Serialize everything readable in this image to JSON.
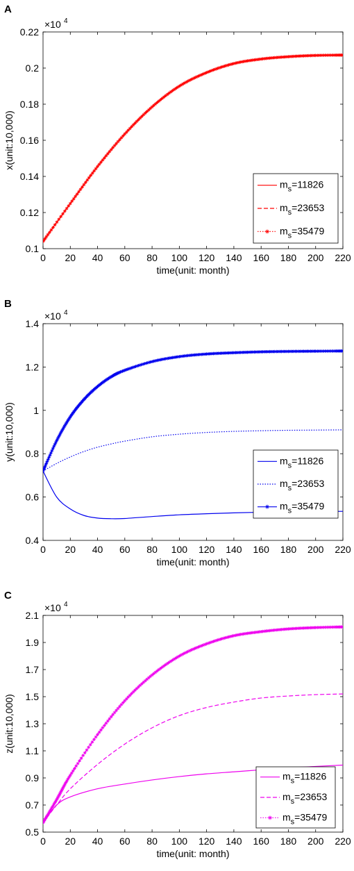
{
  "chart_data": [
    {
      "panel_label": "A",
      "type": "line",
      "xlabel": "time(unit: month)",
      "ylabel": "x(unit:10,000)",
      "multiplier": "×10",
      "multiplier_exp": "4",
      "xlim": [
        0,
        220
      ],
      "ylim": [
        0.1,
        0.22
      ],
      "xticks": [
        0,
        20,
        40,
        60,
        80,
        100,
        120,
        140,
        160,
        180,
        200,
        220
      ],
      "yticks": [
        0.1,
        0.12,
        0.14,
        0.16,
        0.18,
        0.2,
        0.22
      ],
      "ytick_labels": [
        "0.1",
        "0.12",
        "0.14",
        "0.16",
        "0.18",
        "0.2",
        "0.22"
      ],
      "legend_position": "center-right",
      "x": [
        0,
        20,
        40,
        60,
        80,
        100,
        120,
        140,
        160,
        180,
        200,
        220
      ],
      "series": [
        {
          "name": "m",
          "name_sub": "s",
          "name_suffix": "=11826",
          "color": "#ff0000",
          "style": "solid",
          "marker": "none",
          "values": [
            0.104,
            0.125,
            0.1455,
            0.1635,
            0.1785,
            0.19,
            0.1975,
            0.2025,
            0.205,
            0.2063,
            0.207,
            0.2072
          ]
        },
        {
          "name": "m",
          "name_sub": "s",
          "name_suffix": "=23653",
          "color": "#ff0000",
          "style": "dashed",
          "marker": "none",
          "values": [
            0.104,
            0.125,
            0.1455,
            0.1635,
            0.1785,
            0.19,
            0.1975,
            0.2025,
            0.205,
            0.2063,
            0.207,
            0.2072
          ]
        },
        {
          "name": "m",
          "name_sub": "s",
          "name_suffix": "=35479",
          "color": "#ff0000",
          "style": "dotted",
          "marker": "star",
          "values": [
            0.104,
            0.125,
            0.1455,
            0.1635,
            0.1785,
            0.19,
            0.1975,
            0.2025,
            0.205,
            0.2063,
            0.207,
            0.2072
          ]
        }
      ]
    },
    {
      "panel_label": "B",
      "type": "line",
      "xlabel": "time(unit: month)",
      "ylabel": "y(unit:10,000)",
      "multiplier": "×10",
      "multiplier_exp": "4",
      "xlim": [
        0,
        220
      ],
      "ylim": [
        0.4,
        1.4
      ],
      "xticks": [
        0,
        20,
        40,
        60,
        80,
        100,
        120,
        140,
        160,
        180,
        200,
        220
      ],
      "yticks": [
        0.4,
        0.6,
        0.8,
        1.0,
        1.2,
        1.4
      ],
      "ytick_labels": [
        "0.4",
        "0.6",
        "0.8",
        "1",
        "1.2",
        "1.4"
      ],
      "legend_position": "center-right",
      "x": [
        0,
        10,
        20,
        30,
        40,
        50,
        60,
        80,
        100,
        120,
        140,
        160,
        180,
        200,
        220
      ],
      "series": [
        {
          "name": "m",
          "name_sub": "s",
          "name_suffix": "=11826",
          "color": "#0000ee",
          "style": "solid",
          "marker": "none",
          "values": [
            0.72,
            0.6,
            0.545,
            0.515,
            0.503,
            0.5,
            0.501,
            0.51,
            0.518,
            0.523,
            0.527,
            0.53,
            0.532,
            0.533,
            0.534
          ]
        },
        {
          "name": "m",
          "name_sub": "s",
          "name_suffix": "=23653",
          "color": "#0000ee",
          "style": "dotted",
          "marker": "none",
          "values": [
            0.72,
            0.755,
            0.785,
            0.81,
            0.83,
            0.845,
            0.858,
            0.878,
            0.89,
            0.898,
            0.903,
            0.906,
            0.908,
            0.909,
            0.91
          ]
        },
        {
          "name": "m",
          "name_sub": "s",
          "name_suffix": "=35479",
          "color": "#0000ee",
          "style": "solid",
          "marker": "star",
          "values": [
            0.72,
            0.86,
            0.97,
            1.05,
            1.11,
            1.155,
            1.185,
            1.225,
            1.248,
            1.26,
            1.266,
            1.27,
            1.272,
            1.273,
            1.274
          ]
        }
      ]
    },
    {
      "panel_label": "C",
      "type": "line",
      "xlabel": "time(unit: month)",
      "ylabel": "z(unit:10,000)",
      "multiplier": "×10",
      "multiplier_exp": "4",
      "xlim": [
        0,
        220
      ],
      "ylim": [
        0.5,
        2.1
      ],
      "xticks": [
        0,
        20,
        40,
        60,
        80,
        100,
        120,
        140,
        160,
        180,
        200,
        220
      ],
      "yticks": [
        0.5,
        0.7,
        0.9,
        1.1,
        1.3,
        1.5,
        1.7,
        1.9,
        2.1
      ],
      "ytick_labels": [
        "0.5",
        "0.7",
        "0.9",
        "1.1",
        "1.3",
        "1.5",
        "1.7",
        "1.9",
        "2.1"
      ],
      "legend_position": "bottom-right",
      "x": [
        0,
        10,
        20,
        40,
        60,
        80,
        100,
        120,
        140,
        160,
        180,
        200,
        220
      ],
      "series": [
        {
          "name": "m",
          "name_sub": "s",
          "name_suffix": "=11826",
          "color": "#ee00ee",
          "style": "solid",
          "marker": "none",
          "values": [
            0.57,
            0.7,
            0.76,
            0.82,
            0.855,
            0.885,
            0.91,
            0.93,
            0.945,
            0.96,
            0.975,
            0.985,
            0.995
          ]
        },
        {
          "name": "m",
          "name_sub": "s",
          "name_suffix": "=23653",
          "color": "#ee00ee",
          "style": "dashed",
          "marker": "none",
          "values": [
            0.57,
            0.7,
            0.82,
            1.0,
            1.15,
            1.27,
            1.36,
            1.42,
            1.46,
            1.49,
            1.505,
            1.515,
            1.52
          ]
        },
        {
          "name": "m",
          "name_sub": "s",
          "name_suffix": "=35479",
          "color": "#ee00ee",
          "style": "dotted",
          "marker": "star",
          "values": [
            0.57,
            0.74,
            0.92,
            1.22,
            1.47,
            1.66,
            1.8,
            1.89,
            1.95,
            1.98,
            2.0,
            2.01,
            2.015
          ]
        }
      ]
    }
  ]
}
